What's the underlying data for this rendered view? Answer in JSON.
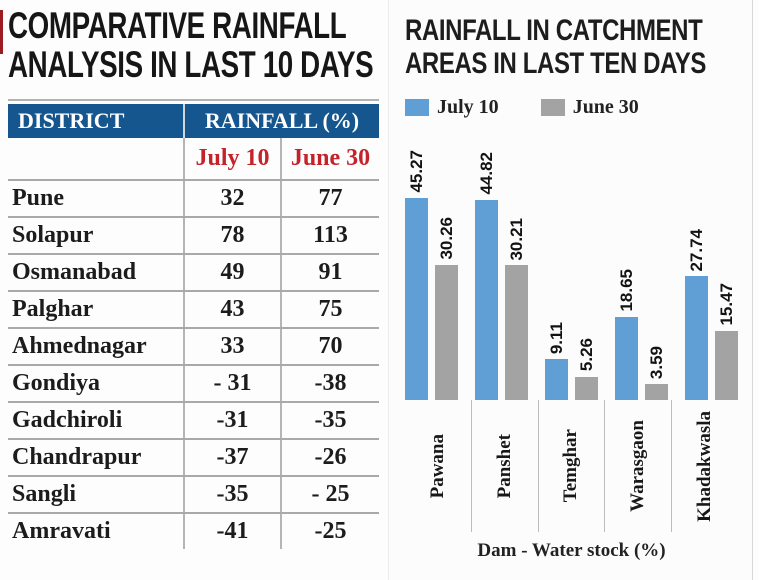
{
  "left_panel": {
    "title_line1": "COMPARATIVE RAINFALL",
    "title_line2": "ANALYSIS IN LAST 10 DAYS",
    "table": {
      "col1_header": "DISTRICT",
      "col2_header": "RAINFALL (%)",
      "sub_col1": "July 10",
      "sub_col2": "June 30",
      "rows": [
        {
          "district": "Pune",
          "july10": "32",
          "june30": "77"
        },
        {
          "district": "Solapur",
          "july10": "78",
          "june30": "113"
        },
        {
          "district": "Osmanabad",
          "july10": "49",
          "june30": "91"
        },
        {
          "district": "Palghar",
          "july10": "43",
          "june30": "75"
        },
        {
          "district": "Ahmednagar",
          "july10": "33",
          "june30": "70"
        },
        {
          "district": "Gondiya",
          "july10": "- 31",
          "june30": "-38"
        },
        {
          "district": "Gadchiroli",
          "july10": "-31",
          "june30": "-35"
        },
        {
          "district": "Chandrapur",
          "july10": "-37",
          "june30": "-26"
        },
        {
          "district": "Sangli",
          "july10": "-35",
          "june30": "- 25"
        },
        {
          "district": "Amravati",
          "july10": "-41",
          "june30": "-25"
        }
      ]
    },
    "colors": {
      "header_bg": "#15568f",
      "header_text": "#ffffff",
      "subheader_text": "#c4232b",
      "accent_rule": "#9b1d23"
    }
  },
  "right_panel": {
    "title_line1": "RAINFALL IN CATCHMENT",
    "title_line2": "AREAS IN LAST TEN DAYS"
  },
  "chart_data": [
    {
      "type": "table",
      "title": "COMPARATIVE RAINFALL ANALYSIS IN LAST 10 DAYS",
      "columns": [
        "DISTRICT",
        "RAINFALL (%) July 10",
        "RAINFALL (%) June 30"
      ],
      "rows": [
        [
          "Pune",
          32,
          77
        ],
        [
          "Solapur",
          78,
          113
        ],
        [
          "Osmanabad",
          49,
          91
        ],
        [
          "Palghar",
          43,
          75
        ],
        [
          "Ahmednagar",
          33,
          70
        ],
        [
          "Gondiya",
          -31,
          -38
        ],
        [
          "Gadchiroli",
          -31,
          -35
        ],
        [
          "Chandrapur",
          -37,
          -26
        ],
        [
          "Sangli",
          -35,
          -25
        ],
        [
          "Amravati",
          -41,
          -25
        ]
      ]
    },
    {
      "type": "bar",
      "title": "RAINFALL IN CATCHMENT AREAS IN LAST TEN DAYS",
      "categories": [
        "Pawana",
        "Panshet",
        "Temghar",
        "Warasgaon",
        "Khadakwasla"
      ],
      "series": [
        {
          "name": "July 10",
          "color": "#5f9fd6",
          "values": [
            45.27,
            44.82,
            9.11,
            18.65,
            27.74
          ]
        },
        {
          "name": "June 30",
          "color": "#a3a3a3",
          "values": [
            30.26,
            30.21,
            5.26,
            3.59,
            15.47
          ]
        }
      ],
      "xlabel": "Dam - Water stock (%)",
      "ylabel": "",
      "ylim": [
        0,
        50
      ],
      "grid": false,
      "value_labels": true,
      "legend_position": "top-left"
    }
  ]
}
